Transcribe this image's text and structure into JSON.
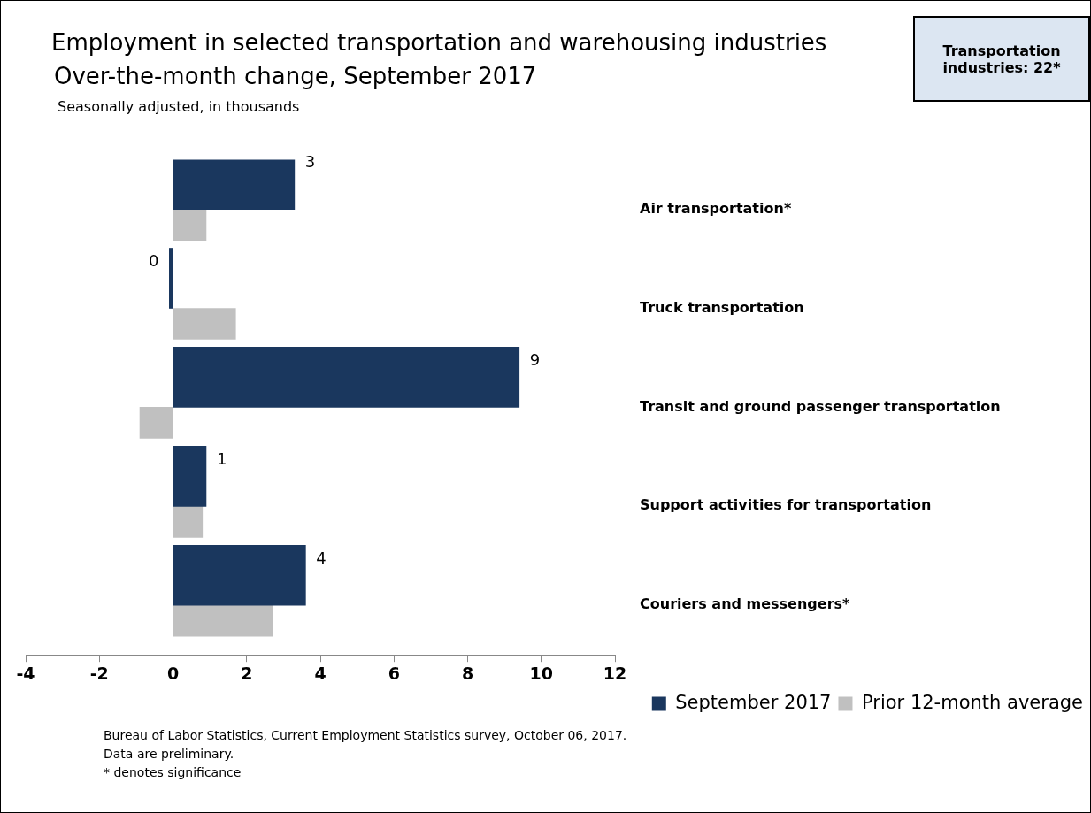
{
  "chart_data": {
    "type": "bar",
    "orientation": "horizontal",
    "title": "Employment in selected transportation and warehousing industries",
    "subtitle": "Over-the-month change, September 2017",
    "categories": [
      "Air transportation*",
      "Truck transportation",
      "Transit and ground passenger transportation",
      "Support activities for transportation",
      "Couriers and messengers*"
    ],
    "series": [
      {
        "name": "September 2017",
        "color": "#1a375e",
        "values": [
          3.3,
          -0.1,
          9.4,
          0.9,
          3.6
        ],
        "value_labels": [
          "3",
          "0",
          "9",
          "1",
          "4"
        ]
      },
      {
        "name": "Prior 12-month average",
        "color": "#c0c0c0",
        "values": [
          0.9,
          1.7,
          -0.9,
          0.8,
          2.7
        ]
      }
    ],
    "xlim": [
      -4,
      12
    ],
    "xticks": [
      -4,
      -2,
      0,
      2,
      4,
      6,
      8,
      10,
      12
    ],
    "legend": "bottom",
    "annotations": [
      "Seasonally adjusted, in thousands",
      "Bureau of Labor Statistics, Current Employment Statistics survey, October 06, 2017.",
      "Data are preliminary.",
      "* denotes significance",
      "Transportation industries: 22*"
    ]
  }
}
